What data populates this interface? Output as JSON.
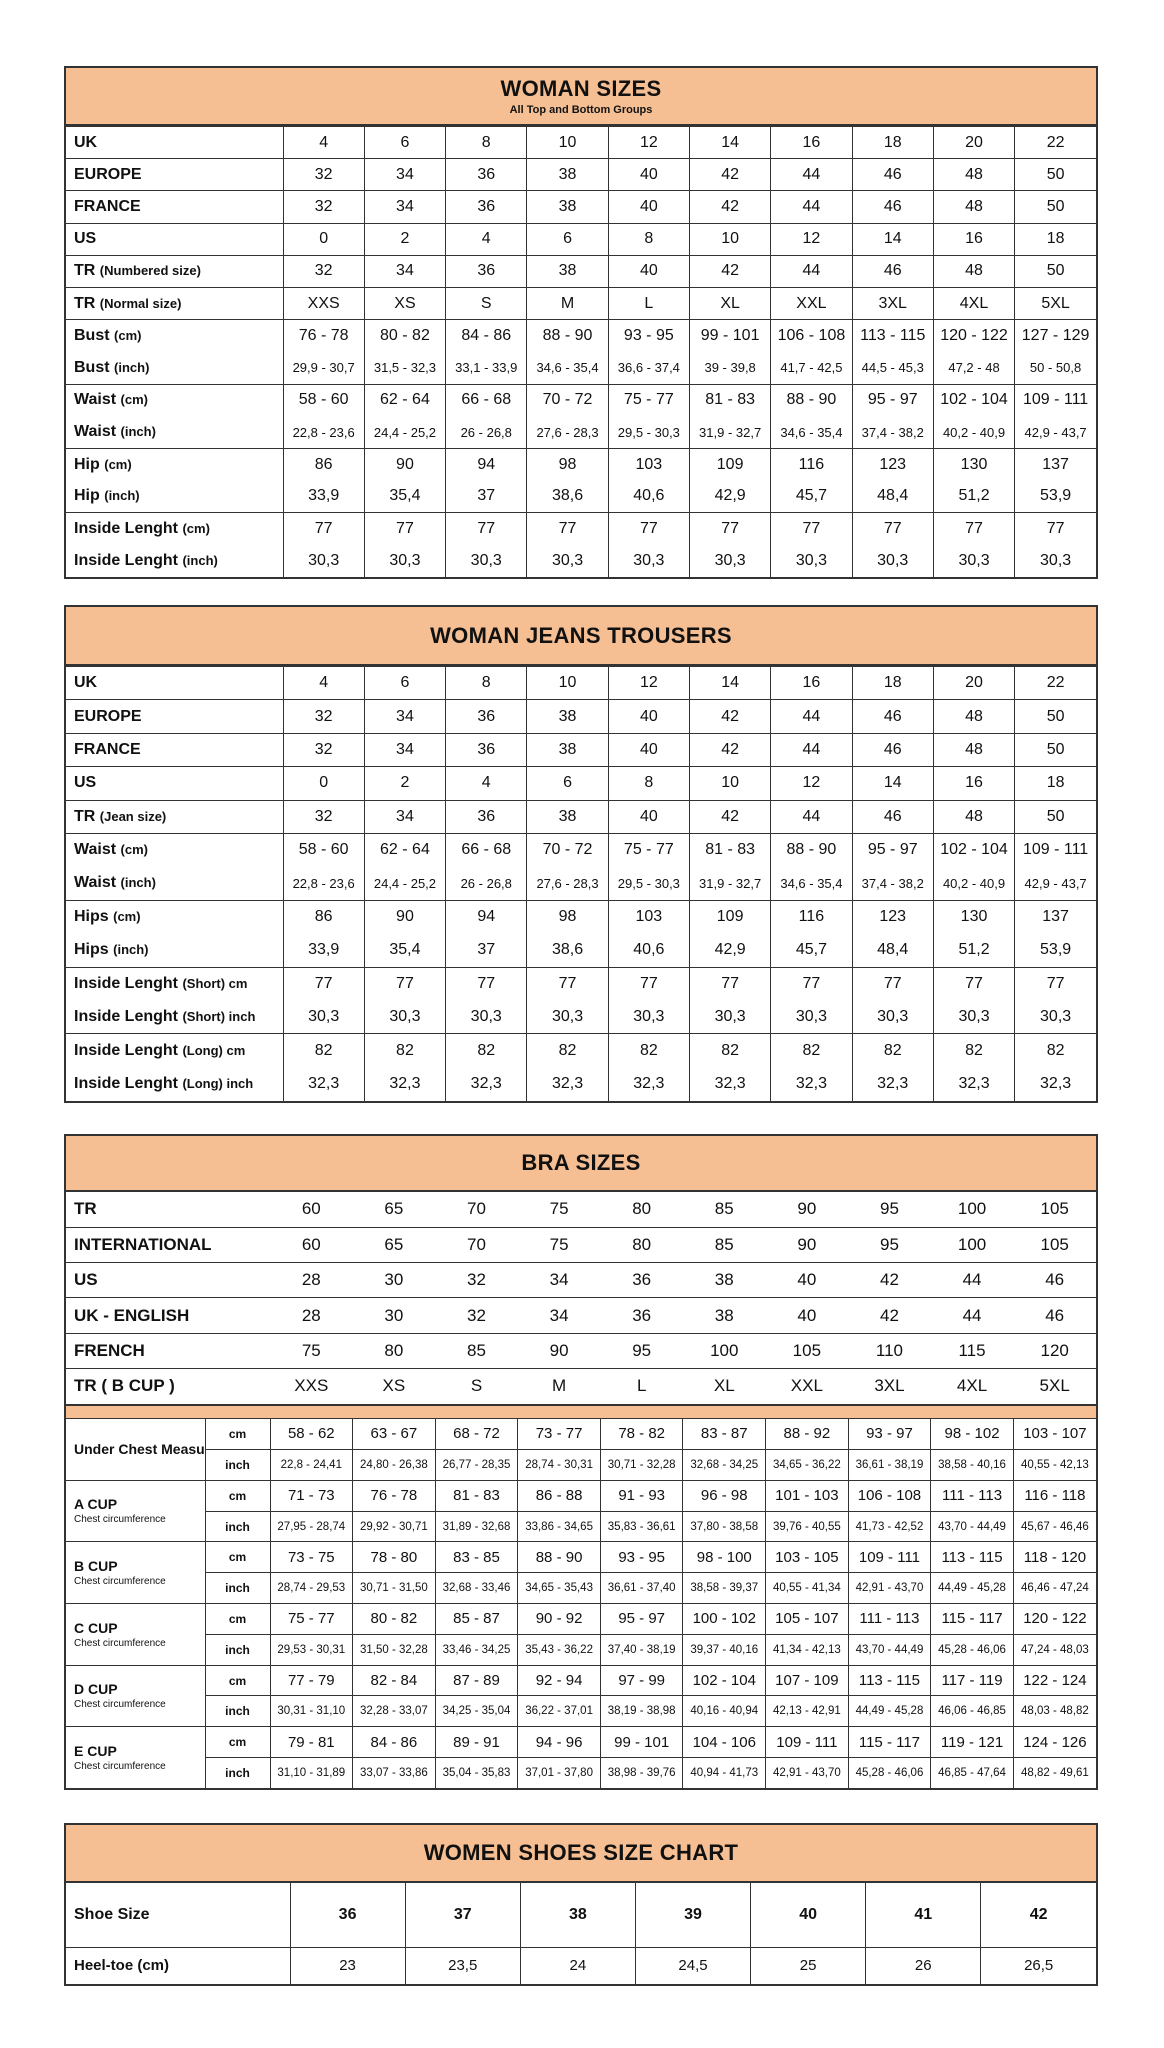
{
  "woman_sizes": {
    "title": "WOMAN SIZES",
    "subtitle": "All Top and Bottom Groups",
    "groups": [
      [
        {
          "label": "UK",
          "unit": "",
          "values": [
            "4",
            "6",
            "8",
            "10",
            "12",
            "14",
            "16",
            "18",
            "20",
            "22"
          ]
        }
      ],
      [
        {
          "label": "EUROPE",
          "unit": "",
          "values": [
            "32",
            "34",
            "36",
            "38",
            "40",
            "42",
            "44",
            "46",
            "48",
            "50"
          ]
        }
      ],
      [
        {
          "label": "FRANCE",
          "unit": "",
          "values": [
            "32",
            "34",
            "36",
            "38",
            "40",
            "42",
            "44",
            "46",
            "48",
            "50"
          ]
        }
      ],
      [
        {
          "label": "US",
          "unit": "",
          "values": [
            "0",
            "2",
            "4",
            "6",
            "8",
            "10",
            "12",
            "14",
            "16",
            "18"
          ]
        }
      ],
      [
        {
          "label": "TR",
          "unit": "(Numbered size)",
          "values": [
            "32",
            "34",
            "36",
            "38",
            "40",
            "42",
            "44",
            "46",
            "48",
            "50"
          ]
        }
      ],
      [
        {
          "label": "TR",
          "unit": "(Normal size)",
          "values": [
            "XXS",
            "XS",
            "S",
            "M",
            "L",
            "XL",
            "XXL",
            "3XL",
            "4XL",
            "5XL"
          ]
        }
      ],
      [
        {
          "label": "Bust",
          "unit": "(cm)",
          "values": [
            "76 - 78",
            "80 - 82",
            "84 - 86",
            "88 - 90",
            "93 - 95",
            "99 - 101",
            "106 - 108",
            "113 - 115",
            "120 - 122",
            "127 - 129"
          ]
        },
        {
          "label": "Bust",
          "unit": "(inch)",
          "small": true,
          "values": [
            "29,9 - 30,7",
            "31,5 - 32,3",
            "33,1 - 33,9",
            "34,6 - 35,4",
            "36,6 - 37,4",
            "39 - 39,8",
            "41,7 - 42,5",
            "44,5 - 45,3",
            "47,2 - 48",
            "50 - 50,8"
          ]
        }
      ],
      [
        {
          "label": "Waist",
          "unit": "(cm)",
          "values": [
            "58 - 60",
            "62 - 64",
            "66 - 68",
            "70 - 72",
            "75 - 77",
            "81 - 83",
            "88 - 90",
            "95 - 97",
            "102 - 104",
            "109 - 111"
          ]
        },
        {
          "label": "Waist",
          "unit": "(inch)",
          "small": true,
          "values": [
            "22,8 - 23,6",
            "24,4 - 25,2",
            "26 - 26,8",
            "27,6 - 28,3",
            "29,5 - 30,3",
            "31,9 - 32,7",
            "34,6 - 35,4",
            "37,4 - 38,2",
            "40,2 - 40,9",
            "42,9 - 43,7"
          ]
        }
      ],
      [
        {
          "label": "Hip",
          "unit": "(cm)",
          "values": [
            "86",
            "90",
            "94",
            "98",
            "103",
            "109",
            "116",
            "123",
            "130",
            "137"
          ]
        },
        {
          "label": "Hip",
          "unit": "(inch)",
          "values": [
            "33,9",
            "35,4",
            "37",
            "38,6",
            "40,6",
            "42,9",
            "45,7",
            "48,4",
            "51,2",
            "53,9"
          ]
        }
      ],
      [
        {
          "label": "Inside Lenght",
          "unit": "(cm)",
          "values": [
            "77",
            "77",
            "77",
            "77",
            "77",
            "77",
            "77",
            "77",
            "77",
            "77"
          ]
        },
        {
          "label": "Inside Lenght",
          "unit": "(inch)",
          "values": [
            "30,3",
            "30,3",
            "30,3",
            "30,3",
            "30,3",
            "30,3",
            "30,3",
            "30,3",
            "30,3",
            "30,3"
          ]
        }
      ]
    ]
  },
  "jeans": {
    "title": "WOMAN JEANS TROUSERS",
    "groups": [
      [
        {
          "label": "UK",
          "unit": "",
          "values": [
            "4",
            "6",
            "8",
            "10",
            "12",
            "14",
            "16",
            "18",
            "20",
            "22"
          ]
        }
      ],
      [
        {
          "label": "EUROPE",
          "unit": "",
          "values": [
            "32",
            "34",
            "36",
            "38",
            "40",
            "42",
            "44",
            "46",
            "48",
            "50"
          ]
        }
      ],
      [
        {
          "label": "FRANCE",
          "unit": "",
          "values": [
            "32",
            "34",
            "36",
            "38",
            "40",
            "42",
            "44",
            "46",
            "48",
            "50"
          ]
        }
      ],
      [
        {
          "label": "US",
          "unit": "",
          "values": [
            "0",
            "2",
            "4",
            "6",
            "8",
            "10",
            "12",
            "14",
            "16",
            "18"
          ]
        }
      ],
      [
        {
          "label": "TR",
          "unit": "(Jean size)",
          "values": [
            "32",
            "34",
            "36",
            "38",
            "40",
            "42",
            "44",
            "46",
            "48",
            "50"
          ]
        }
      ],
      [
        {
          "label": "Waist",
          "unit": "(cm)",
          "values": [
            "58 - 60",
            "62 - 64",
            "66 - 68",
            "70 - 72",
            "75 - 77",
            "81 - 83",
            "88 - 90",
            "95 - 97",
            "102 - 104",
            "109 - 111"
          ]
        },
        {
          "label": "Waist",
          "unit": "(inch)",
          "small": true,
          "values": [
            "22,8 - 23,6",
            "24,4 - 25,2",
            "26 - 26,8",
            "27,6 - 28,3",
            "29,5 - 30,3",
            "31,9 - 32,7",
            "34,6 - 35,4",
            "37,4 - 38,2",
            "40,2 - 40,9",
            "42,9 - 43,7"
          ]
        }
      ],
      [
        {
          "label": "Hips",
          "unit": "(cm)",
          "values": [
            "86",
            "90",
            "94",
            "98",
            "103",
            "109",
            "116",
            "123",
            "130",
            "137"
          ]
        },
        {
          "label": "Hips",
          "unit": "(inch)",
          "values": [
            "33,9",
            "35,4",
            "37",
            "38,6",
            "40,6",
            "42,9",
            "45,7",
            "48,4",
            "51,2",
            "53,9"
          ]
        }
      ],
      [
        {
          "label": "Inside Lenght",
          "unit": "(Short) cm",
          "values": [
            "77",
            "77",
            "77",
            "77",
            "77",
            "77",
            "77",
            "77",
            "77",
            "77"
          ]
        },
        {
          "label": "Inside Lenght",
          "unit": "(Short) inch",
          "values": [
            "30,3",
            "30,3",
            "30,3",
            "30,3",
            "30,3",
            "30,3",
            "30,3",
            "30,3",
            "30,3",
            "30,3"
          ]
        }
      ],
      [
        {
          "label": "Inside Lenght",
          "unit": "(Long) cm",
          "values": [
            "82",
            "82",
            "82",
            "82",
            "82",
            "82",
            "82",
            "82",
            "82",
            "82"
          ]
        },
        {
          "label": "Inside Lenght",
          "unit": "(Long) inch",
          "values": [
            "32,3",
            "32,3",
            "32,3",
            "32,3",
            "32,3",
            "32,3",
            "32,3",
            "32,3",
            "32,3",
            "32,3"
          ]
        }
      ]
    ]
  },
  "bra": {
    "title": "BRA SIZES",
    "size_rows": [
      {
        "label": "TR",
        "values": [
          "60",
          "65",
          "70",
          "75",
          "80",
          "85",
          "90",
          "95",
          "100",
          "105"
        ]
      },
      {
        "label": "INTERNATIONAL",
        "values": [
          "60",
          "65",
          "70",
          "75",
          "80",
          "85",
          "90",
          "95",
          "100",
          "105"
        ]
      },
      {
        "label": "US",
        "values": [
          "28",
          "30",
          "32",
          "34",
          "36",
          "38",
          "40",
          "42",
          "44",
          "46"
        ]
      },
      {
        "label": "UK - ENGLISH",
        "values": [
          "28",
          "30",
          "32",
          "34",
          "36",
          "38",
          "40",
          "42",
          "44",
          "46"
        ]
      },
      {
        "label": "FRENCH",
        "values": [
          "75",
          "80",
          "85",
          "90",
          "95",
          "100",
          "105",
          "110",
          "115",
          "120"
        ]
      },
      {
        "label": "TR ( B CUP )",
        "values": [
          "XXS",
          "XS",
          "S",
          "M",
          "L",
          "XL",
          "XXL",
          "3XL",
          "4XL",
          "5XL"
        ]
      }
    ],
    "unit_cm": "cm",
    "unit_inch": "inch",
    "cups": [
      {
        "label": "Under Chest Measurement",
        "sub": "",
        "cm": [
          "58 - 62",
          "63 - 67",
          "68 - 72",
          "73 - 77",
          "78 - 82",
          "83 - 87",
          "88 - 92",
          "93 - 97",
          "98 - 102",
          "103 - 107"
        ],
        "inch": [
          "22,8 - 24,41",
          "24,80 - 26,38",
          "26,77 - 28,35",
          "28,74 - 30,31",
          "30,71 - 32,28",
          "32,68 - 34,25",
          "34,65 - 36,22",
          "36,61 - 38,19",
          "38,58 - 40,16",
          "40,55 - 42,13"
        ]
      },
      {
        "label": "A CUP",
        "sub": "Chest circumference",
        "cm": [
          "71 - 73",
          "76 - 78",
          "81 - 83",
          "86 - 88",
          "91 - 93",
          "96 - 98",
          "101 - 103",
          "106 - 108",
          "111 - 113",
          "116 - 118"
        ],
        "inch": [
          "27,95 - 28,74",
          "29,92 - 30,71",
          "31,89 - 32,68",
          "33,86 - 34,65",
          "35,83 - 36,61",
          "37,80 - 38,58",
          "39,76 - 40,55",
          "41,73 - 42,52",
          "43,70 - 44,49",
          "45,67 - 46,46"
        ]
      },
      {
        "label": "B CUP",
        "sub": "Chest circumference",
        "cm": [
          "73 - 75",
          "78 - 80",
          "83 - 85",
          "88 - 90",
          "93 - 95",
          "98 - 100",
          "103 - 105",
          "109 - 111",
          "113 - 115",
          "118 - 120"
        ],
        "inch": [
          "28,74 - 29,53",
          "30,71 - 31,50",
          "32,68 - 33,46",
          "34,65 - 35,43",
          "36,61 - 37,40",
          "38,58 - 39,37",
          "40,55 - 41,34",
          "42,91 - 43,70",
          "44,49 - 45,28",
          "46,46 - 47,24"
        ]
      },
      {
        "label": "C CUP",
        "sub": "Chest circumference",
        "cm": [
          "75 - 77",
          "80 - 82",
          "85 - 87",
          "90 - 92",
          "95 - 97",
          "100 - 102",
          "105 - 107",
          "111 - 113",
          "115 - 117",
          "120 - 122"
        ],
        "inch": [
          "29,53 - 30,31",
          "31,50 - 32,28",
          "33,46 - 34,25",
          "35,43 - 36,22",
          "37,40 - 38,19",
          "39,37 - 40,16",
          "41,34 - 42,13",
          "43,70 - 44,49",
          "45,28 - 46,06",
          "47,24 - 48,03"
        ]
      },
      {
        "label": "D CUP",
        "sub": "Chest circumference",
        "cm": [
          "77 - 79",
          "82 - 84",
          "87 - 89",
          "92 - 94",
          "97 - 99",
          "102 - 104",
          "107 - 109",
          "113 - 115",
          "117 - 119",
          "122 - 124"
        ],
        "inch": [
          "30,31 - 31,10",
          "32,28 - 33,07",
          "34,25 - 35,04",
          "36,22 - 37,01",
          "38,19 - 38,98",
          "40,16 - 40,94",
          "42,13 - 42,91",
          "44,49 - 45,28",
          "46,06 - 46,85",
          "48,03 - 48,82"
        ]
      },
      {
        "label": "E CUP",
        "sub": "Chest circumference",
        "cm": [
          "79 - 81",
          "84 - 86",
          "89 - 91",
          "94 - 96",
          "99 - 101",
          "104 - 106",
          "109 - 111",
          "115 - 117",
          "119 - 121",
          "124 - 126"
        ],
        "inch": [
          "31,10 - 31,89",
          "33,07 - 33,86",
          "35,04 - 35,83",
          "37,01 - 37,80",
          "38,98 - 39,76",
          "40,94 - 41,73",
          "42,91 - 43,70",
          "45,28 - 46,06",
          "46,85 - 47,64",
          "48,82 - 49,61"
        ]
      }
    ]
  },
  "shoes": {
    "title": "WOMEN SHOES SIZE CHART",
    "rows": [
      {
        "label": "Shoe Size",
        "values": [
          "36",
          "37",
          "38",
          "39",
          "40",
          "41",
          "42"
        ]
      },
      {
        "label": "Heel-toe (cm)",
        "values": [
          "23",
          "23,5",
          "24",
          "24,5",
          "25",
          "26",
          "26,5"
        ]
      }
    ]
  },
  "colors": {
    "header_bg": "#f6bf93",
    "border": "#333333"
  }
}
